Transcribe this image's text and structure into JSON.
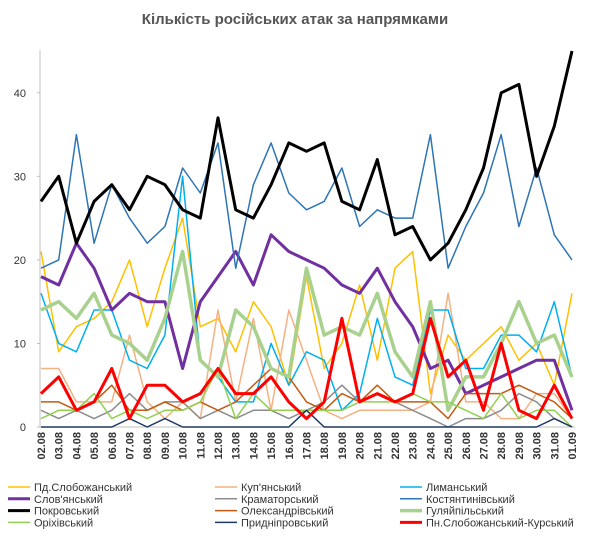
{
  "chart_data": {
    "type": "line",
    "title": "Кількість російських атак за напрямками",
    "categories": [
      "02.08",
      "03.08",
      "04.08",
      "05.08",
      "06.08",
      "07.08",
      "08.08",
      "09.08",
      "10.08",
      "11.08",
      "12.08",
      "13.08",
      "14.08",
      "15.08",
      "16.08",
      "17.08",
      "18.08",
      "19.08",
      "20.08",
      "21.08",
      "22.08",
      "23.08",
      "24.08",
      "25.08",
      "26.08",
      "27.08",
      "28.08",
      "29.08",
      "30.08",
      "31.08",
      "01.09"
    ],
    "ylim": [
      0,
      45
    ],
    "yticks": [
      0,
      10,
      20,
      30,
      40
    ],
    "grid": false,
    "series": [
      {
        "name": "Пд.Слобожанський",
        "color": "#ffc000",
        "width": 1.5,
        "values": [
          21,
          9,
          12,
          13,
          15,
          20,
          12,
          19,
          25,
          12,
          13,
          9,
          15,
          12,
          5,
          18,
          7,
          10,
          17,
          8,
          19,
          21,
          4,
          11,
          8,
          10,
          12,
          8,
          10,
          5,
          16
        ]
      },
      {
        "name": "Куп'янський",
        "color": "#f4b183",
        "width": 1.5,
        "values": [
          7,
          7,
          3,
          3,
          3,
          11,
          3,
          1,
          3,
          1,
          14,
          3,
          13,
          2,
          14,
          8,
          2,
          1,
          2,
          2,
          2,
          2,
          3,
          16,
          3,
          3,
          1,
          1,
          4,
          4,
          1
        ]
      },
      {
        "name": "Лиманський",
        "color": "#00b0f0",
        "width": 1.5,
        "values": [
          16,
          10,
          9,
          14,
          14,
          8,
          7,
          11,
          30,
          8,
          6,
          3,
          3,
          10,
          5,
          9,
          8,
          2,
          4,
          13,
          6,
          5,
          14,
          14,
          7,
          7,
          11,
          11,
          9,
          15,
          6
        ]
      },
      {
        "name": "Слов'янський",
        "color": "#7030a0",
        "width": 3,
        "values": [
          18,
          17,
          22,
          19,
          14,
          16,
          15,
          15,
          7,
          15,
          18,
          21,
          17,
          23,
          21,
          20,
          19,
          17,
          16,
          19,
          15,
          12,
          7,
          8,
          4,
          5,
          6,
          7,
          8,
          8,
          2
        ]
      },
      {
        "name": "Краматорський",
        "color": "#8c8c8c",
        "width": 1.5,
        "values": [
          2,
          1,
          2,
          1,
          2,
          4,
          2,
          3,
          3,
          1,
          2,
          1,
          2,
          2,
          1,
          2,
          3,
          5,
          3,
          4,
          3,
          2,
          1,
          0,
          1,
          1,
          2,
          4,
          3,
          1,
          0
        ]
      },
      {
        "name": "Костянтинівський",
        "color": "#2e75b6",
        "width": 1.5,
        "values": [
          19,
          20,
          35,
          22,
          29,
          25,
          22,
          24,
          31,
          28,
          34,
          19,
          29,
          34,
          28,
          26,
          27,
          31,
          24,
          26,
          25,
          25,
          35,
          19,
          24,
          28,
          35,
          24,
          31,
          23,
          20
        ]
      },
      {
        "name": "Покровський",
        "color": "#000000",
        "width": 3,
        "values": [
          27,
          30,
          22,
          27,
          29,
          26,
          30,
          29,
          26,
          25,
          37,
          26,
          25,
          29,
          34,
          33,
          34,
          27,
          26,
          32,
          23,
          24,
          20,
          22,
          26,
          31,
          40,
          41,
          30,
          36,
          45
        ]
      },
      {
        "name": "Олександрівський",
        "color": "#c55a11",
        "width": 1.5,
        "values": [
          3,
          3,
          2,
          3,
          5,
          2,
          2,
          3,
          2,
          3,
          2,
          3,
          5,
          7,
          6,
          3,
          2,
          4,
          3,
          5,
          3,
          3,
          3,
          1,
          4,
          4,
          4,
          5,
          4,
          3,
          1
        ]
      },
      {
        "name": "Гуляйпільський",
        "color": "#a9d18e",
        "width": 3.5,
        "values": [
          14,
          15,
          13,
          16,
          11,
          10,
          8,
          13,
          21,
          8,
          6,
          14,
          12,
          7,
          6,
          19,
          11,
          12,
          11,
          16,
          9,
          6,
          15,
          2,
          6,
          6,
          10,
          15,
          10,
          11,
          6
        ]
      },
      {
        "name": "Оріхівський",
        "color": "#92d050",
        "width": 1.5,
        "values": [
          1,
          2,
          2,
          4,
          1,
          2,
          1,
          2,
          2,
          3,
          7,
          1,
          4,
          2,
          2,
          2,
          2,
          2,
          3,
          3,
          3,
          4,
          3,
          3,
          2,
          1,
          4,
          1,
          2,
          2,
          0
        ]
      },
      {
        "name": "Придніпровський",
        "color": "#203864",
        "width": 1.5,
        "values": [
          0,
          0,
          0,
          0,
          0,
          1,
          0,
          1,
          0,
          0,
          0,
          0,
          0,
          0,
          0,
          2,
          0,
          0,
          0,
          0,
          0,
          0,
          0,
          0,
          0,
          0,
          0,
          0,
          0,
          1,
          0
        ]
      },
      {
        "name": "Пн.Слобожанський-Курський",
        "color": "#ff0000",
        "width": 3,
        "values": [
          4,
          6,
          2,
          3,
          7,
          1,
          5,
          5,
          3,
          4,
          7,
          4,
          4,
          6,
          3,
          1,
          3,
          13,
          3,
          4,
          3,
          4,
          13,
          6,
          8,
          2,
          10,
          2,
          1,
          5,
          1
        ]
      }
    ]
  }
}
